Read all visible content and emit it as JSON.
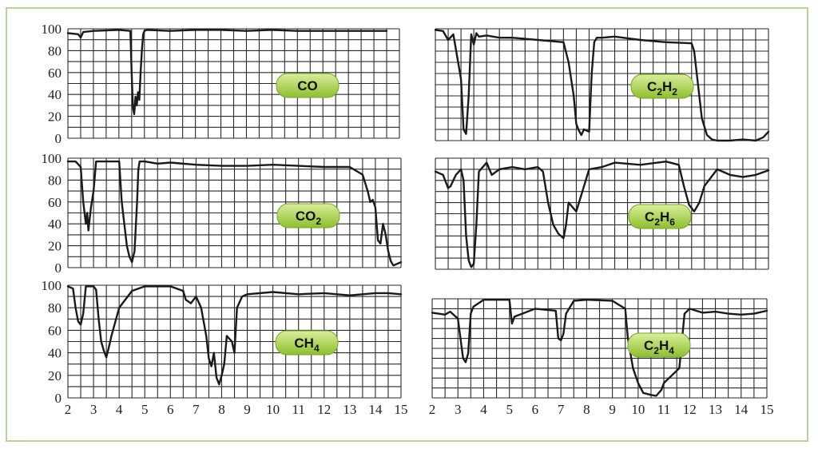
{
  "style": {
    "frame_border": "#b9d49a",
    "grid_color": "#2a2a2a",
    "line_color": "#1a1a1a",
    "badge_fill_top": "#d9ee9a",
    "badge_fill_bottom": "#8dbf2e",
    "badge_stroke": "#7aa62a"
  },
  "chart_data": [
    {
      "type": "line",
      "label": "CO",
      "label_parts": [
        {
          "t": "CO",
          "sub": false
        }
      ],
      "xlim": [
        2,
        15
      ],
      "ylim": [
        0,
        100
      ],
      "yticks": [
        "0",
        "20",
        "40",
        "60",
        "80",
        "100"
      ],
      "xticks": [],
      "grid": true,
      "x": [
        2.0,
        2.4,
        2.5,
        2.6,
        3.0,
        4.0,
        4.45,
        4.5,
        4.55,
        4.6,
        4.65,
        4.7,
        4.75,
        4.8,
        4.85,
        4.9,
        4.95,
        5.0,
        5.1,
        6.0,
        7.0,
        8.0,
        9.0,
        10.0,
        11.0,
        12.0,
        13.0,
        14.0,
        14.5
      ],
      "y": [
        96,
        95,
        92,
        97,
        98,
        99,
        98,
        60,
        28,
        22,
        38,
        30,
        42,
        35,
        60,
        80,
        95,
        98,
        99,
        98,
        99,
        99,
        98,
        99,
        98,
        98,
        98,
        98,
        98
      ]
    },
    {
      "type": "line",
      "label": "C2H2",
      "label_parts": [
        {
          "t": "C",
          "sub": false
        },
        {
          "t": "2",
          "sub": true
        },
        {
          "t": "H",
          "sub": false
        },
        {
          "t": "2",
          "sub": true
        }
      ],
      "xlim": [
        2,
        15
      ],
      "ylim": [
        0,
        100
      ],
      "yticks": [],
      "xticks": [],
      "grid": true,
      "x": [
        2.0,
        2.3,
        2.5,
        2.7,
        3.0,
        3.1,
        3.2,
        3.3,
        3.4,
        3.5,
        3.6,
        3.7,
        4.0,
        4.5,
        5.0,
        6.0,
        7.0,
        7.2,
        7.4,
        7.5,
        7.6,
        7.7,
        7.8,
        8.0,
        8.1,
        8.2,
        8.3,
        8.5,
        9.0,
        10.0,
        11.0,
        12.0,
        12.1,
        12.2,
        12.4,
        12.6,
        12.8,
        13.0,
        13.5,
        14.0,
        14.5,
        14.8,
        15.0
      ],
      "y": [
        99,
        98,
        90,
        95,
        55,
        10,
        6,
        40,
        95,
        86,
        96,
        93,
        94,
        92,
        92,
        90,
        88,
        70,
        40,
        15,
        9,
        5,
        10,
        8,
        60,
        88,
        92,
        92,
        93,
        90,
        88,
        87,
        80,
        60,
        20,
        5,
        1,
        0,
        0,
        1,
        0,
        3,
        8
      ]
    },
    {
      "type": "line",
      "label": "CO2",
      "label_parts": [
        {
          "t": "CO",
          "sub": false
        },
        {
          "t": "2",
          "sub": true
        }
      ],
      "xlim": [
        2,
        15
      ],
      "ylim": [
        0,
        100
      ],
      "yticks": [
        "0",
        "20",
        "40",
        "60",
        "80",
        "100"
      ],
      "xticks": [],
      "grid": true,
      "x": [
        2.0,
        2.3,
        2.5,
        2.6,
        2.7,
        2.75,
        2.8,
        2.85,
        2.9,
        3.0,
        3.1,
        3.2,
        3.5,
        4.0,
        4.1,
        4.2,
        4.3,
        4.4,
        4.5,
        4.6,
        4.7,
        4.75,
        4.8,
        5.0,
        5.5,
        6.0,
        7.0,
        8.0,
        9.0,
        10.0,
        11.0,
        12.0,
        13.0,
        13.5,
        13.7,
        13.8,
        13.9,
        14.0,
        14.1,
        14.2,
        14.3,
        14.4,
        14.5,
        14.6,
        14.7,
        15.0
      ],
      "y": [
        97,
        97,
        92,
        60,
        40,
        50,
        34,
        45,
        55,
        70,
        97,
        97,
        97,
        97,
        60,
        40,
        20,
        10,
        5,
        15,
        60,
        90,
        97,
        97,
        95,
        96,
        94,
        93,
        93,
        94,
        93,
        92,
        92,
        85,
        70,
        60,
        62,
        55,
        25,
        22,
        40,
        30,
        15,
        6,
        2,
        5
      ]
    },
    {
      "type": "line",
      "label": "C2H6",
      "label_parts": [
        {
          "t": "C",
          "sub": false
        },
        {
          "t": "2",
          "sub": true
        },
        {
          "t": "H",
          "sub": false
        },
        {
          "t": "6",
          "sub": true
        }
      ],
      "xlim": [
        2,
        15
      ],
      "ylim": [
        0,
        100
      ],
      "yticks": [],
      "xticks": [],
      "grid": true,
      "x": [
        2.0,
        2.3,
        2.5,
        2.6,
        2.8,
        3.0,
        3.1,
        3.2,
        3.3,
        3.4,
        3.5,
        3.6,
        3.7,
        4.0,
        4.2,
        4.5,
        5.0,
        5.5,
        6.0,
        6.2,
        6.4,
        6.6,
        6.8,
        7.0,
        7.1,
        7.2,
        7.5,
        8.0,
        8.5,
        9.0,
        10.0,
        11.0,
        11.5,
        11.7,
        11.9,
        12.1,
        12.3,
        12.5,
        13.0,
        13.5,
        14.0,
        14.5,
        15.0
      ],
      "y": [
        88,
        85,
        73,
        75,
        85,
        90,
        80,
        30,
        8,
        2,
        5,
        40,
        88,
        96,
        85,
        90,
        92,
        90,
        92,
        88,
        60,
        40,
        32,
        28,
        40,
        60,
        52,
        90,
        92,
        96,
        94,
        97,
        94,
        75,
        58,
        52,
        60,
        75,
        90,
        85,
        83,
        85,
        89
      ]
    },
    {
      "type": "line",
      "label": "CH4",
      "label_parts": [
        {
          "t": "CH",
          "sub": false
        },
        {
          "t": "4",
          "sub": true
        }
      ],
      "xlim": [
        2,
        15
      ],
      "ylim": [
        0,
        100
      ],
      "yticks": [
        "0",
        "20",
        "40",
        "60",
        "80",
        "100"
      ],
      "xticks": [
        "2",
        "3",
        "4",
        "5",
        "6",
        "7",
        "8",
        "9",
        "10",
        "11",
        "12",
        "13",
        "14",
        "15"
      ],
      "grid": true,
      "x": [
        2.0,
        2.2,
        2.3,
        2.4,
        2.5,
        2.6,
        2.7,
        3.0,
        3.1,
        3.2,
        3.3,
        3.4,
        3.5,
        3.6,
        3.7,
        4.0,
        4.5,
        5.0,
        6.0,
        6.5,
        6.6,
        6.8,
        7.0,
        7.2,
        7.4,
        7.5,
        7.6,
        7.7,
        7.8,
        7.9,
        8.0,
        8.1,
        8.2,
        8.4,
        8.5,
        8.6,
        8.8,
        9.0,
        10.0,
        11.0,
        12.0,
        13.0,
        13.5,
        14.0,
        14.5,
        15.0
      ],
      "y": [
        99,
        97,
        80,
        68,
        65,
        75,
        99,
        99,
        96,
        70,
        50,
        42,
        36,
        45,
        55,
        80,
        95,
        99,
        99,
        95,
        87,
        84,
        90,
        80,
        55,
        35,
        28,
        40,
        18,
        12,
        20,
        30,
        55,
        50,
        40,
        80,
        90,
        92,
        94,
        92,
        93,
        91,
        92,
        93,
        93,
        92
      ]
    },
    {
      "type": "line",
      "label": "C2H4",
      "label_parts": [
        {
          "t": "C",
          "sub": false
        },
        {
          "t": "2",
          "sub": true
        },
        {
          "t": "H",
          "sub": false
        },
        {
          "t": "4",
          "sub": true
        }
      ],
      "xlim": [
        2,
        15
      ],
      "ylim": [
        0,
        100
      ],
      "yticks": [],
      "xticks": [
        "2",
        "3",
        "4",
        "5",
        "6",
        "7",
        "8",
        "9",
        "10",
        "11",
        "12",
        "13",
        "14",
        "15"
      ],
      "grid": true,
      "x": [
        2.0,
        2.5,
        2.7,
        3.0,
        3.2,
        3.3,
        3.4,
        3.5,
        3.6,
        4.0,
        4.5,
        5.0,
        5.1,
        5.2,
        5.5,
        6.0,
        6.8,
        6.9,
        7.0,
        7.1,
        7.2,
        7.5,
        8.0,
        9.0,
        9.5,
        9.6,
        9.8,
        10.0,
        10.2,
        10.5,
        10.7,
        10.9,
        11.0,
        11.2,
        11.4,
        11.6,
        11.8,
        12.0,
        12.5,
        13.0,
        13.5,
        14.0,
        14.5,
        15.0
      ],
      "y": [
        86,
        84,
        87,
        80,
        40,
        36,
        45,
        85,
        92,
        99,
        99,
        99,
        75,
        82,
        85,
        90,
        88,
        60,
        58,
        65,
        85,
        98,
        99,
        98,
        90,
        60,
        30,
        15,
        5,
        3,
        2,
        8,
        15,
        20,
        25,
        30,
        85,
        90,
        86,
        87,
        85,
        84,
        85,
        88
      ]
    }
  ]
}
